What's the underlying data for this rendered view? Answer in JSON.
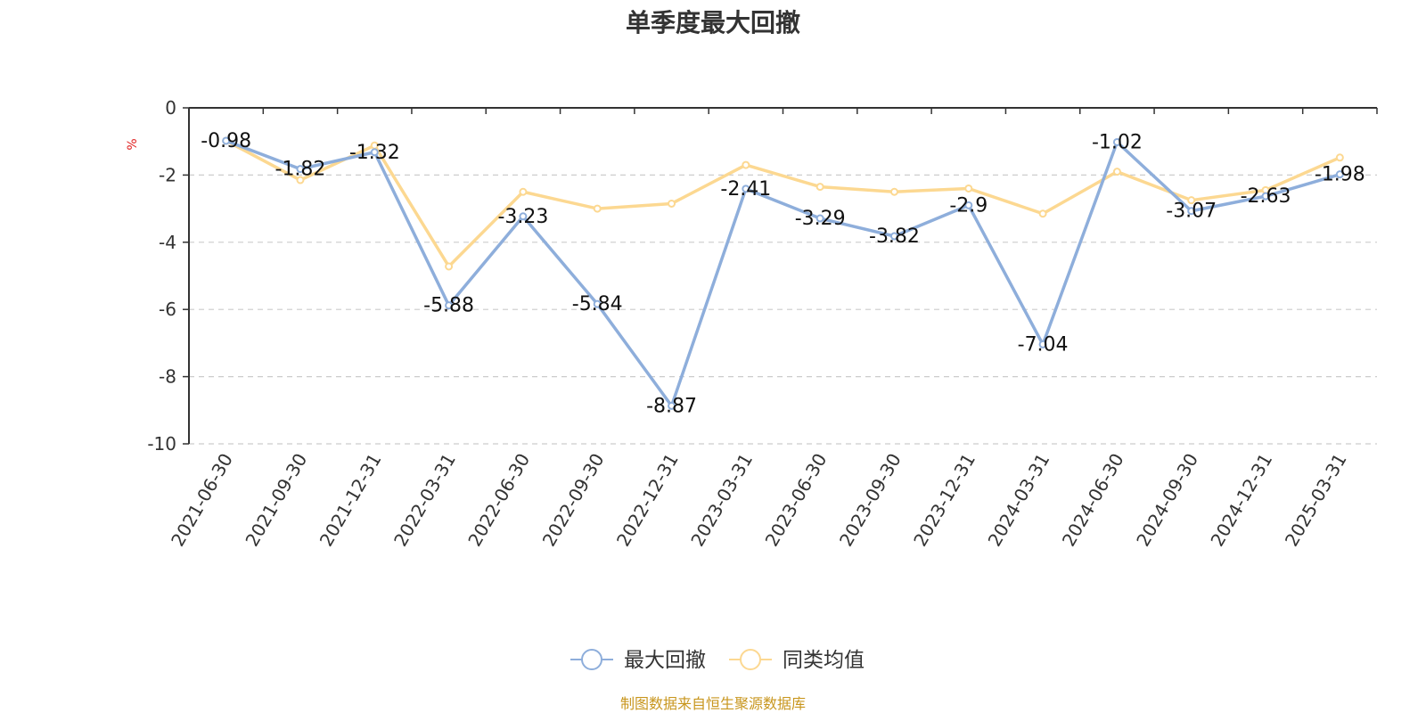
{
  "title": "单季度最大回撤",
  "source": "制图数据来自恒生聚源数据库",
  "chart_data": {
    "type": "line",
    "title": "单季度最大回撤",
    "ylabel": "%",
    "ylim": [
      -10,
      0
    ],
    "yticks": [
      0,
      -2,
      -4,
      -6,
      -8,
      -10
    ],
    "grid": "horizontal-dashed",
    "legend_position": "bottom-center",
    "categories": [
      "2021-06-30",
      "2021-09-30",
      "2021-12-31",
      "2022-03-31",
      "2022-06-30",
      "2022-09-30",
      "2022-12-31",
      "2023-03-31",
      "2023-06-30",
      "2023-09-30",
      "2023-12-31",
      "2024-03-31",
      "2024-06-30",
      "2024-09-30",
      "2024-12-31",
      "2025-03-31"
    ],
    "series": [
      {
        "name": "最大回撤",
        "color": "#8eaedb",
        "values": [
          -0.98,
          -1.82,
          -1.32,
          -5.88,
          -3.23,
          -5.84,
          -8.87,
          -2.41,
          -3.29,
          -3.82,
          -2.9,
          -7.04,
          -1.02,
          -3.07,
          -2.63,
          -1.98
        ],
        "labels": [
          "-0.98",
          "-1.82",
          "-1.32",
          "-5.88",
          "-3.23",
          "-5.84",
          "-8.87",
          "-2.41",
          "-3.29",
          "-3.82",
          "-2.9",
          "-7.04",
          "-1.02",
          "-3.07",
          "-2.63",
          "-1.98"
        ]
      },
      {
        "name": "同类均值",
        "color": "#fcd891",
        "values": [
          -0.98,
          -2.15,
          -1.12,
          -4.72,
          -2.5,
          -3.0,
          -2.85,
          -1.7,
          -2.35,
          -2.5,
          -2.4,
          -3.15,
          -1.9,
          -2.75,
          -2.45,
          -1.48
        ]
      }
    ]
  }
}
